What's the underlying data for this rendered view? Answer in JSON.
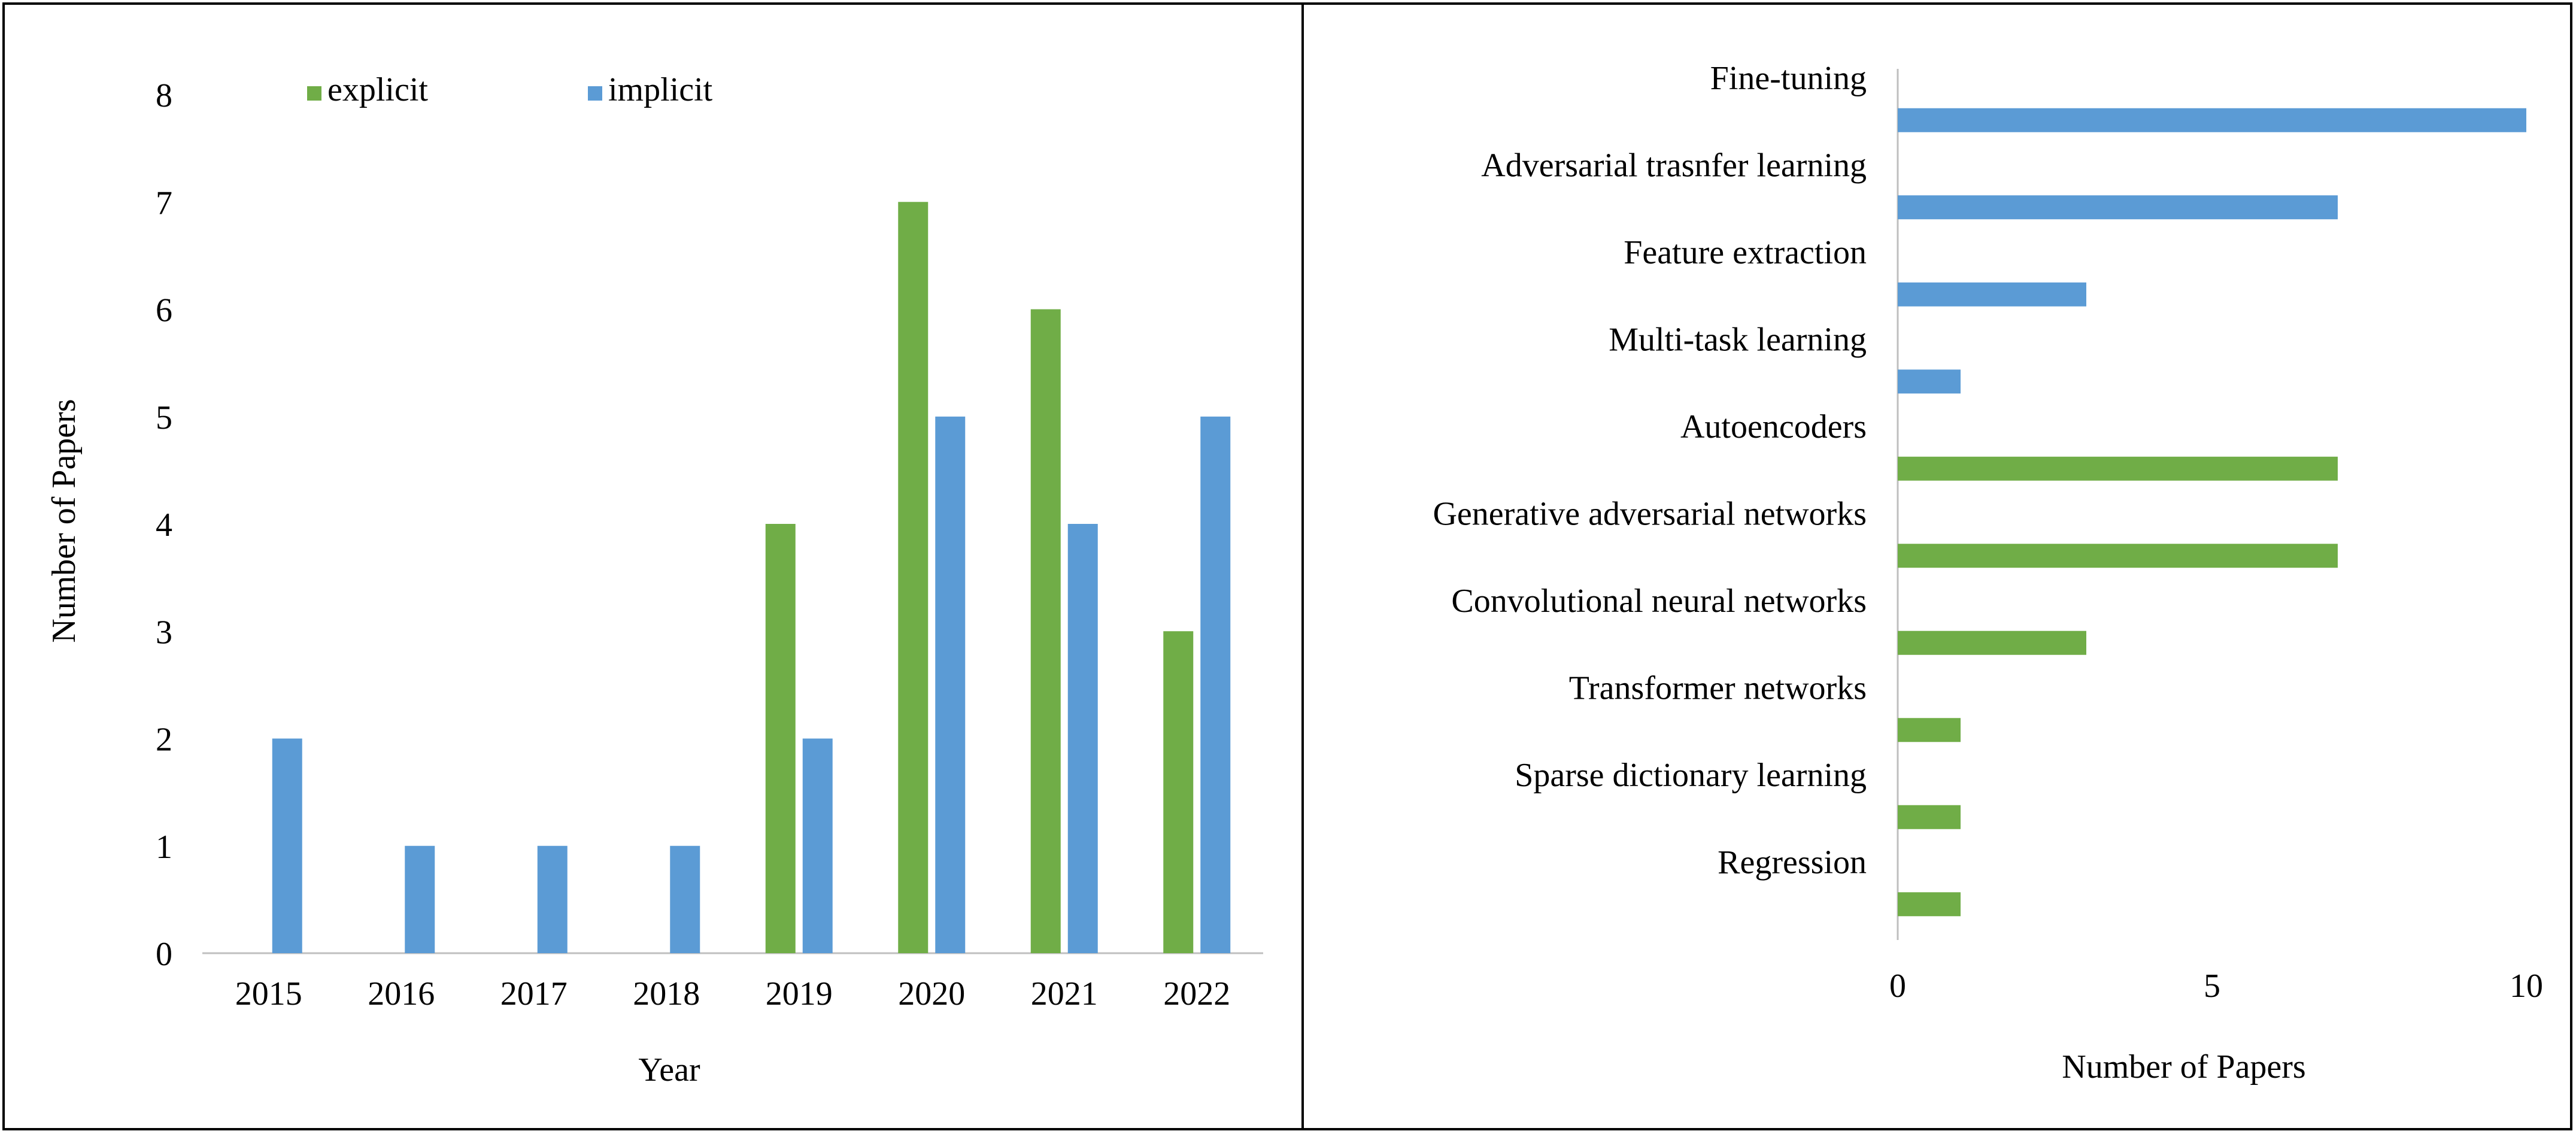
{
  "colors": {
    "explicit": "#70AD47",
    "implicit": "#5B9BD5",
    "axis": "#BFBFBF",
    "border": "#000000"
  },
  "chart_data": [
    {
      "type": "bar",
      "orientation": "vertical",
      "categories": [
        "2015",
        "2016",
        "2017",
        "2018",
        "2019",
        "2020",
        "2021",
        "2022"
      ],
      "series": [
        {
          "name": "explicit",
          "color": "#70AD47",
          "values": [
            0,
            0,
            0,
            0,
            4,
            7,
            6,
            3
          ]
        },
        {
          "name": "implicit",
          "color": "#5B9BD5",
          "values": [
            2,
            1,
            1,
            1,
            2,
            5,
            4,
            5
          ]
        }
      ],
      "xlabel": "Year",
      "ylabel": "Number of Papers",
      "ylim": [
        0,
        8
      ],
      "yticks": [
        "0",
        "1",
        "2",
        "3",
        "4",
        "5",
        "6",
        "7",
        "8"
      ],
      "grid": false,
      "legend_position": "top"
    },
    {
      "type": "bar",
      "orientation": "horizontal",
      "categories": [
        "Fine-tuning",
        "Adversarial trasnfer learning",
        "Feature extraction",
        "Multi-task learning",
        "Autoencoders",
        "Generative adversarial networks",
        "Convolutional neural networks",
        "Transformer networks",
        "Sparse dictionary learning",
        "Regression"
      ],
      "values": [
        10,
        7,
        3,
        1,
        7,
        7,
        3,
        1,
        1,
        1
      ],
      "bar_colors": [
        "#5B9BD5",
        "#5B9BD5",
        "#5B9BD5",
        "#5B9BD5",
        "#70AD47",
        "#70AD47",
        "#70AD47",
        "#70AD47",
        "#70AD47",
        "#70AD47"
      ],
      "xlabel": "Number of Papers",
      "xlim": [
        0,
        10
      ],
      "xticks": [
        "0",
        "5",
        "10"
      ],
      "grid": false
    }
  ]
}
